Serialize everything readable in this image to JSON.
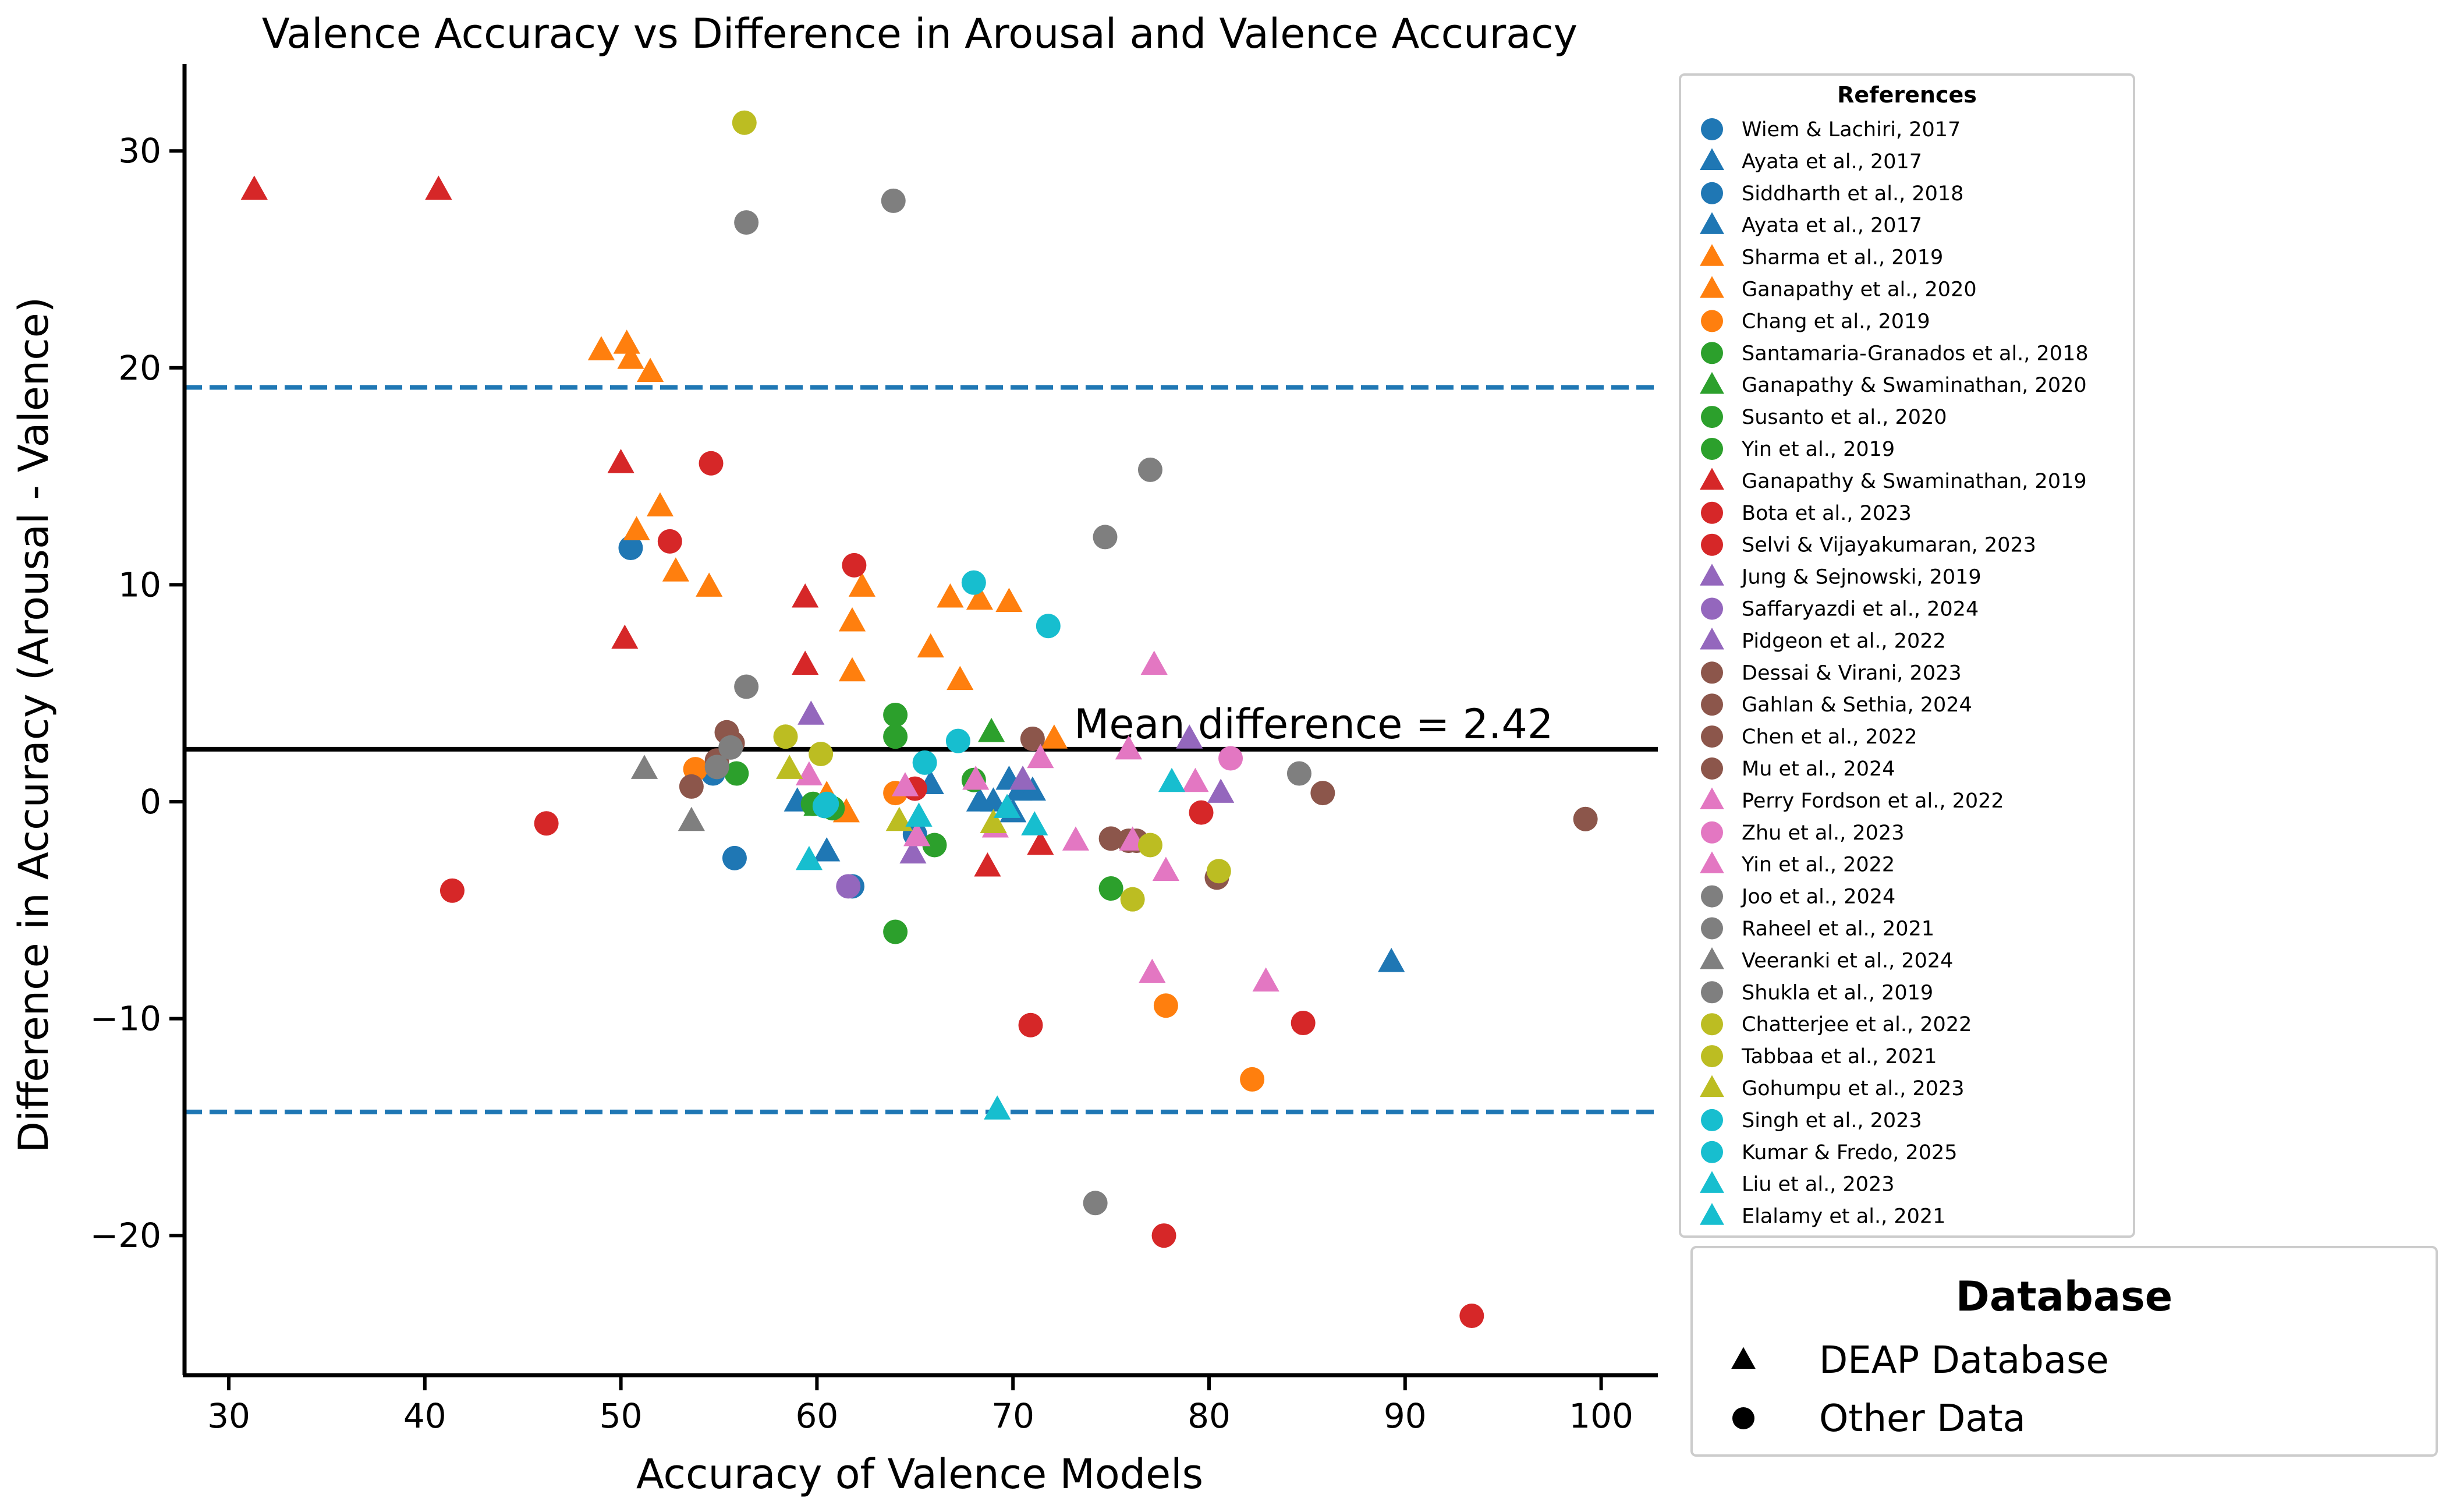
{
  "chart_data": {
    "type": "scatter",
    "title": "Valence Accuracy vs Difference in Arousal and Valence Accuracy",
    "xlabel": "Accuracy of Valence Models",
    "ylabel": "Difference in Accuracy (Arousal - Valence)",
    "xlim": [
      28,
      103
    ],
    "ylim": [
      -26.5,
      34
    ],
    "x_ticks": [
      "30",
      "40",
      "50",
      "60",
      "70",
      "80",
      "90",
      "100"
    ],
    "y_ticks": [
      "30",
      "20",
      "10",
      "0",
      "−10",
      "−20"
    ],
    "mean_difference": 2.42,
    "upper_limit": 19.1,
    "lower_limit": -14.3,
    "mean_label": "Mean difference = 2.42",
    "legend_references_title": "References",
    "legend_database_title": "Database",
    "marker_legend": [
      {
        "label": "DEAP Database",
        "marker": "triangle"
      },
      {
        "label": "Other Data",
        "marker": "circle"
      }
    ],
    "series": [
      {
        "name": "Wiem & Lachiri, 2017",
        "marker": "circle",
        "color": "#1f77b4",
        "points": [
          [
            50.5,
            11.7
          ],
          [
            54.7,
            1.3
          ]
        ]
      },
      {
        "name": "Ayata et al., 2017",
        "marker": "triangle",
        "color": "#1f77b4",
        "points": [
          [
            68.3,
            0.0
          ],
          [
            69.8,
            1.0
          ],
          [
            70.3,
            0.5
          ],
          [
            71.0,
            0.5
          ],
          [
            65.8,
            0.8
          ]
        ]
      },
      {
        "name": "Siddharth et al., 2018",
        "marker": "circle",
        "color": "#1f77b4",
        "points": [
          [
            55.8,
            -2.6
          ],
          [
            61.8,
            -3.9
          ],
          [
            65.0,
            -1.5
          ]
        ]
      },
      {
        "name": "Ayata et al., 2017",
        "marker": "triangle",
        "color": "#1f77b4",
        "points": [
          [
            60.5,
            -2.3
          ],
          [
            59.0,
            0.0
          ],
          [
            89.3,
            -7.4
          ],
          [
            69.0,
            0.0
          ],
          [
            70.0,
            -0.5
          ]
        ]
      },
      {
        "name": "Sharma et al., 2019",
        "marker": "triangle",
        "color": "#ff7f0e",
        "points": [
          [
            49.0,
            20.8
          ],
          [
            50.3,
            21.1
          ],
          [
            50.5,
            20.4
          ],
          [
            51.5,
            19.8
          ],
          [
            50.8,
            12.5
          ],
          [
            52.0,
            13.6
          ],
          [
            52.8,
            10.6
          ],
          [
            54.5,
            9.9
          ],
          [
            62.3,
            9.9
          ],
          [
            61.8,
            8.3
          ],
          [
            61.8,
            6.0
          ]
        ]
      },
      {
        "name": "Ganapathy et al., 2020",
        "marker": "triangle",
        "color": "#ff7f0e",
        "points": [
          [
            66.8,
            9.4
          ],
          [
            68.3,
            9.3
          ],
          [
            69.8,
            9.2
          ],
          [
            65.8,
            7.1
          ],
          [
            67.3,
            5.6
          ],
          [
            72.1,
            2.9
          ],
          [
            61.5,
            -0.5
          ],
          [
            60.5,
            0.3
          ]
        ]
      },
      {
        "name": "Chang et al., 2019",
        "marker": "circle",
        "color": "#ff7f0e",
        "points": [
          [
            53.8,
            1.5
          ],
          [
            64.0,
            0.4
          ],
          [
            77.8,
            -9.4
          ],
          [
            82.2,
            -12.8
          ]
        ]
      },
      {
        "name": "Santamaria-Granados et al., 2018",
        "marker": "circle",
        "color": "#2ca02c",
        "points": [
          [
            64.0,
            4.0
          ],
          [
            64.0,
            3.0
          ],
          [
            55.9,
            1.3
          ],
          [
            59.8,
            -0.1
          ]
        ]
      },
      {
        "name": "Ganapathy & Swaminathan, 2020",
        "marker": "triangle",
        "color": "#2ca02c",
        "points": [
          [
            68.9,
            3.2
          ],
          [
            60.0,
            -0.2
          ]
        ]
      },
      {
        "name": "Susanto et al., 2020",
        "marker": "circle",
        "color": "#2ca02c",
        "points": [
          [
            64.0,
            -6.0
          ],
          [
            75.0,
            -4.0
          ],
          [
            66.0,
            -2.0
          ],
          [
            68.0,
            1.0
          ]
        ]
      },
      {
        "name": "Yin et al., 2019",
        "marker": "circle",
        "color": "#2ca02c",
        "points": [
          [
            60.8,
            -0.3
          ]
        ]
      },
      {
        "name": "Ganapathy & Swaminathan, 2019",
        "marker": "triangle",
        "color": "#d62728",
        "points": [
          [
            31.3,
            28.2
          ],
          [
            40.7,
            28.2
          ],
          [
            50.0,
            15.6
          ],
          [
            50.2,
            7.5
          ],
          [
            59.4,
            9.4
          ],
          [
            59.4,
            6.3
          ],
          [
            68.7,
            -3.0
          ],
          [
            71.4,
            -2.0
          ]
        ]
      },
      {
        "name": "Bota et al., 2023",
        "marker": "circle",
        "color": "#d62728",
        "points": [
          [
            54.6,
            15.6
          ],
          [
            52.5,
            12.0
          ],
          [
            61.9,
            10.9
          ],
          [
            41.4,
            -4.1
          ],
          [
            46.2,
            -1.0
          ]
        ]
      },
      {
        "name": "Selvi & Vijayakumaran, 2023",
        "marker": "circle",
        "color": "#d62728",
        "points": [
          [
            70.9,
            -10.3
          ],
          [
            84.8,
            -10.2
          ],
          [
            77.7,
            -20.0
          ],
          [
            93.4,
            -23.7
          ],
          [
            79.6,
            -0.5
          ],
          [
            65.0,
            0.6
          ]
        ]
      },
      {
        "name": "Jung & Sejnowski, 2019",
        "marker": "triangle",
        "color": "#9467bd",
        "points": [
          [
            59.7,
            4.0
          ],
          [
            79.0,
            2.9
          ],
          [
            80.6,
            0.4
          ],
          [
            64.9,
            -2.4
          ]
        ]
      },
      {
        "name": "Saffaryazdi et al., 2024",
        "marker": "circle",
        "color": "#9467bd",
        "points": [
          [
            61.6,
            -3.9
          ]
        ]
      },
      {
        "name": "Pidgeon et al., 2022",
        "marker": "triangle",
        "color": "#9467bd",
        "points": [
          [
            70.5,
            1.0
          ]
        ]
      },
      {
        "name": "Dessai & Virani, 2023",
        "marker": "circle",
        "color": "#8c564b",
        "points": [
          [
            55.4,
            3.2
          ],
          [
            55.7,
            2.7
          ],
          [
            53.6,
            0.7
          ],
          [
            54.9,
            1.9
          ]
        ]
      },
      {
        "name": "Gahlan & Sethia, 2024",
        "marker": "circle",
        "color": "#8c564b",
        "points": [
          [
            71.0,
            2.9
          ],
          [
            75.0,
            -1.7
          ],
          [
            75.9,
            -1.8
          ]
        ]
      },
      {
        "name": "Chen et al., 2022",
        "marker": "circle",
        "color": "#8c564b",
        "points": [
          [
            85.8,
            0.4
          ],
          [
            80.4,
            -3.5
          ]
        ]
      },
      {
        "name": "Mu et al., 2024",
        "marker": "circle",
        "color": "#8c564b",
        "points": [
          [
            99.2,
            -0.8
          ],
          [
            76.3,
            -1.8
          ]
        ]
      },
      {
        "name": "Perry Fordson et al., 2022",
        "marker": "triangle",
        "color": "#e377c2",
        "points": [
          [
            77.2,
            6.3
          ],
          [
            75.9,
            2.4
          ],
          [
            71.4,
            2.0
          ],
          [
            73.2,
            -1.8
          ],
          [
            77.1,
            -7.9
          ],
          [
            82.9,
            -8.3
          ],
          [
            77.8,
            -3.2
          ],
          [
            79.3,
            0.9
          ],
          [
            69.1,
            -1.2
          ],
          [
            68.1,
            1.0
          ]
        ]
      },
      {
        "name": "Zhu et al., 2023",
        "marker": "circle",
        "color": "#e377c2",
        "points": [
          [
            81.1,
            2.0
          ]
        ]
      },
      {
        "name": "Yin et al., 2022",
        "marker": "triangle",
        "color": "#e377c2",
        "points": [
          [
            59.6,
            1.2
          ],
          [
            64.5,
            0.7
          ],
          [
            65.1,
            -1.6
          ],
          [
            76.1,
            -1.8
          ]
        ]
      },
      {
        "name": "Joo et al., 2024",
        "marker": "circle",
        "color": "#7f7f7f",
        "points": [
          [
            56.4,
            26.7
          ],
          [
            63.9,
            27.7
          ],
          [
            77.0,
            15.3
          ],
          [
            74.7,
            12.2
          ],
          [
            56.4,
            5.3
          ],
          [
            84.6,
            1.3
          ],
          [
            74.2,
            -18.5
          ]
        ]
      },
      {
        "name": "Raheel et al., 2021",
        "marker": "circle",
        "color": "#7f7f7f",
        "points": [
          [
            55.6,
            2.5
          ]
        ]
      },
      {
        "name": "Veeranki et al., 2024",
        "marker": "triangle",
        "color": "#7f7f7f",
        "points": [
          [
            51.2,
            1.5
          ],
          [
            53.6,
            -0.9
          ]
        ]
      },
      {
        "name": "Shukla et al., 2019",
        "marker": "circle",
        "color": "#7f7f7f",
        "points": [
          [
            54.9,
            1.6
          ]
        ]
      },
      {
        "name": "Chatterjee et al., 2022",
        "marker": "circle",
        "color": "#bcbd22",
        "points": [
          [
            56.3,
            31.3
          ],
          [
            58.4,
            3.0
          ],
          [
            60.2,
            2.2
          ]
        ]
      },
      {
        "name": "Tabbaa et al., 2021",
        "marker": "circle",
        "color": "#bcbd22",
        "points": [
          [
            77.0,
            -2.0
          ],
          [
            76.1,
            -4.5
          ],
          [
            80.5,
            -3.2
          ]
        ]
      },
      {
        "name": "Gohumpu et al., 2023",
        "marker": "triangle",
        "color": "#bcbd22",
        "points": [
          [
            58.6,
            1.5
          ],
          [
            64.2,
            -0.9
          ],
          [
            69.0,
            -1.0
          ]
        ]
      },
      {
        "name": "Singh et al., 2023",
        "marker": "circle",
        "color": "#17becf",
        "points": [
          [
            68.0,
            10.1
          ],
          [
            71.8,
            8.1
          ],
          [
            67.2,
            2.8
          ],
          [
            65.5,
            1.8
          ],
          [
            60.5,
            -0.1
          ]
        ]
      },
      {
        "name": "Kumar & Fredo, 2025",
        "marker": "circle",
        "color": "#17becf",
        "points": [
          [
            60.4,
            -0.2
          ]
        ]
      },
      {
        "name": "Liu et al., 2023",
        "marker": "triangle",
        "color": "#17becf",
        "points": [
          [
            59.6,
            -2.7
          ],
          [
            65.2,
            -0.7
          ],
          [
            69.7,
            -0.3
          ],
          [
            71.1,
            -1.1
          ],
          [
            69.2,
            -14.2
          ]
        ]
      },
      {
        "name": "Elalamy et al., 2021",
        "marker": "triangle",
        "color": "#17becf",
        "points": [
          [
            78.1,
            0.9
          ]
        ]
      }
    ]
  }
}
